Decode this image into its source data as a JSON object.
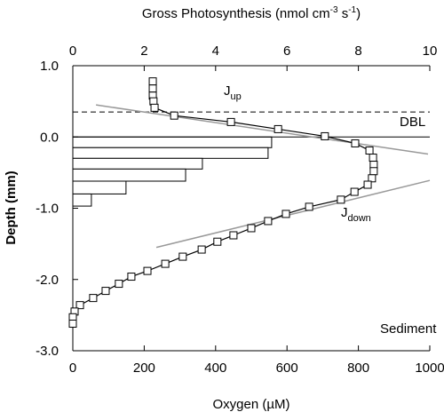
{
  "chart_data": {
    "type": "line",
    "x_label": "Oxygen (µM)",
    "x2_label": [
      "Gross Photosynthesis (nmol cm",
      "-3",
      " s",
      "-1",
      ")"
    ],
    "y_label": "Depth (mm)",
    "xlim": [
      0,
      1000
    ],
    "xticks": [
      0,
      200,
      400,
      600,
      800,
      1000
    ],
    "x2lim": [
      0,
      10
    ],
    "x2ticks": [
      0,
      2,
      4,
      6,
      8,
      10
    ],
    "ylim": [
      -3.0,
      1.0
    ],
    "yticks": [
      {
        "value": 1.0,
        "label": "1.0"
      },
      {
        "value": 0.0,
        "label": "0.0"
      },
      {
        "value": -1.0,
        "label": "-1.0"
      },
      {
        "value": -2.0,
        "label": "-2.0"
      },
      {
        "value": -3.0,
        "label": "-3.0"
      }
    ],
    "series": [
      {
        "color": "#000000",
        "x": [
          224,
          224,
          224,
          226,
          229,
          284,
          443,
          575,
          706,
          791,
          831,
          841,
          843,
          843,
          838,
          826,
          789,
          751,
          662,
          597,
          547,
          500,
          450,
          405,
          361,
          308,
          259,
          209,
          164,
          129,
          92,
          57,
          20,
          5,
          0,
          0
        ],
        "y": [
          0.78,
          0.68,
          0.58,
          0.5,
          0.41,
          0.3,
          0.21,
          0.11,
          0.01,
          -0.09,
          -0.19,
          -0.29,
          -0.39,
          -0.48,
          -0.58,
          -0.67,
          -0.77,
          -0.88,
          -0.98,
          -1.08,
          -1.18,
          -1.28,
          -1.38,
          -1.47,
          -1.58,
          -1.68,
          -1.78,
          -1.88,
          -1.96,
          -2.06,
          -2.16,
          -2.26,
          -2.36,
          -2.45,
          -2.53,
          -2.62
        ]
      }
    ],
    "bars": {
      "axis": "x2",
      "bins": [
        0,
        -0.15,
        -0.3,
        -0.45,
        -0.62,
        -0.8,
        -0.97
      ],
      "values": [
        5.57,
        5.47,
        3.63,
        3.16,
        1.49,
        0.52
      ]
    },
    "fit_lines": [
      {
        "color": "#999999",
        "x": [
          65,
          995
        ],
        "y": [
          0.45,
          -0.24
        ]
      },
      {
        "color": "#999999",
        "x": [
          234,
          1000
        ],
        "y": [
          -1.55,
          -0.61
        ]
      }
    ],
    "dbl_depth": 0.35,
    "annotations": [
      {
        "text": "J",
        "sub": "up"
      },
      {
        "text": "DBL"
      },
      {
        "text": "J",
        "sub": "down"
      },
      {
        "text": "Sediment"
      }
    ]
  }
}
